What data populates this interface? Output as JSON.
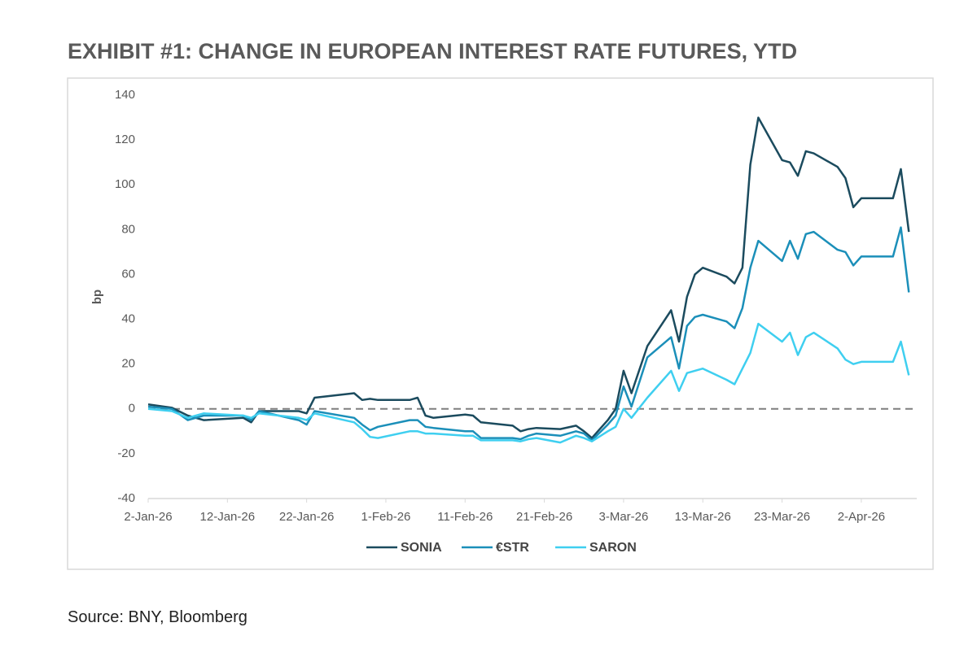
{
  "source": "Source: BNY, Bloomberg",
  "chart_data": {
    "type": "line",
    "title": "EXHIBIT #1: CHANGE IN EUROPEAN INTEREST RATE FUTURES, YTD",
    "ylabel": "bp",
    "x": [
      "2026-01-02",
      "2026-01-05",
      "2026-01-07",
      "2026-01-09",
      "2026-01-14",
      "2026-01-15",
      "2026-01-16",
      "2026-01-21",
      "2026-01-22",
      "2026-01-23",
      "2026-01-28",
      "2026-01-29",
      "2026-01-30",
      "2026-01-31",
      "2026-02-04",
      "2026-02-05",
      "2026-02-06",
      "2026-02-07",
      "2026-02-11",
      "2026-02-12",
      "2026-02-13",
      "2026-02-17",
      "2026-02-18",
      "2026-02-19",
      "2026-02-20",
      "2026-02-23",
      "2026-02-25",
      "2026-02-26",
      "2026-02-27",
      "2026-03-01",
      "2026-03-02",
      "2026-03-03",
      "2026-03-04",
      "2026-03-06",
      "2026-03-09",
      "2026-03-10",
      "2026-03-11",
      "2026-03-12",
      "2026-03-13",
      "2026-03-16",
      "2026-03-17",
      "2026-03-18",
      "2026-03-19",
      "2026-03-20",
      "2026-03-23",
      "2026-03-24",
      "2026-03-25",
      "2026-03-26",
      "2026-03-27",
      "2026-03-30",
      "2026-03-31",
      "2026-04-01",
      "2026-04-02",
      "2026-04-06",
      "2026-04-07",
      "2026-04-08"
    ],
    "series": [
      {
        "name": "SONIA",
        "color": "#1b4b5e",
        "values": [
          2,
          0.5,
          -3,
          -5,
          -4,
          -6,
          -1,
          -1,
          -2,
          5,
          7,
          4,
          4.5,
          4,
          4,
          5,
          -3,
          -4,
          -2.5,
          -3,
          -6,
          -7.5,
          -10,
          -9,
          -8.5,
          -9,
          -7.5,
          -10,
          -13,
          -5,
          0,
          17,
          7,
          28,
          44,
          30,
          50,
          60,
          63,
          59,
          56,
          63,
          109,
          130,
          111,
          110,
          104,
          115,
          114,
          108,
          103,
          90,
          94,
          94,
          107,
          79
        ]
      },
      {
        "name": "€STR",
        "color": "#1b8fb9",
        "values": [
          1,
          0,
          -5,
          -3,
          -3,
          -5,
          -1,
          -5,
          -7,
          -1,
          -4,
          -7,
          -9.5,
          -8,
          -5,
          -5,
          -8,
          -8.5,
          -10,
          -10,
          -13,
          -13,
          -13.5,
          -12,
          -11,
          -12,
          -10,
          -11,
          -14,
          -7,
          -3,
          10,
          1,
          23,
          32,
          18,
          37,
          41,
          42,
          39,
          36,
          45,
          63,
          75,
          66,
          75,
          67,
          78,
          79,
          71,
          70,
          64,
          68,
          68,
          81,
          52
        ]
      },
      {
        "name": "SARON",
        "color": "#3fcff0",
        "values": [
          0,
          -1,
          -4,
          -2,
          -3,
          -4,
          -2,
          -4,
          -5,
          -2,
          -6,
          -9,
          -12.5,
          -13,
          -10,
          -10,
          -11,
          -11,
          -12,
          -12,
          -14,
          -14,
          -14.5,
          -13.5,
          -13,
          -15,
          -12,
          -13,
          -14.5,
          -10,
          -8,
          0,
          -4,
          5,
          17,
          8,
          16,
          17,
          18,
          13,
          11,
          18,
          25,
          38,
          30,
          34,
          24,
          32,
          34,
          27,
          22,
          20,
          21,
          21,
          30,
          15
        ]
      }
    ],
    "xlim": [
      "2026-01-02",
      "2026-04-09"
    ],
    "xticks": [
      {
        "value": "2026-01-02",
        "label": "2-Jan-26"
      },
      {
        "value": "2026-01-12",
        "label": "12-Jan-26"
      },
      {
        "value": "2026-01-22",
        "label": "22-Jan-26"
      },
      {
        "value": "2026-02-01",
        "label": "1-Feb-26"
      },
      {
        "value": "2026-02-11",
        "label": "11-Feb-26"
      },
      {
        "value": "2026-02-21",
        "label": "21-Feb-26"
      },
      {
        "value": "2026-03-03",
        "label": "3-Mar-26"
      },
      {
        "value": "2026-03-13",
        "label": "13-Mar-26"
      },
      {
        "value": "2026-03-23",
        "label": "23-Mar-26"
      },
      {
        "value": "2026-04-02",
        "label": "2-Apr-26"
      }
    ],
    "ylim": [
      -40,
      140
    ],
    "yticks": [
      -40,
      -20,
      0,
      20,
      40,
      60,
      80,
      100,
      120,
      140
    ],
    "hline": 0,
    "grid": false,
    "legend": "bottom"
  }
}
